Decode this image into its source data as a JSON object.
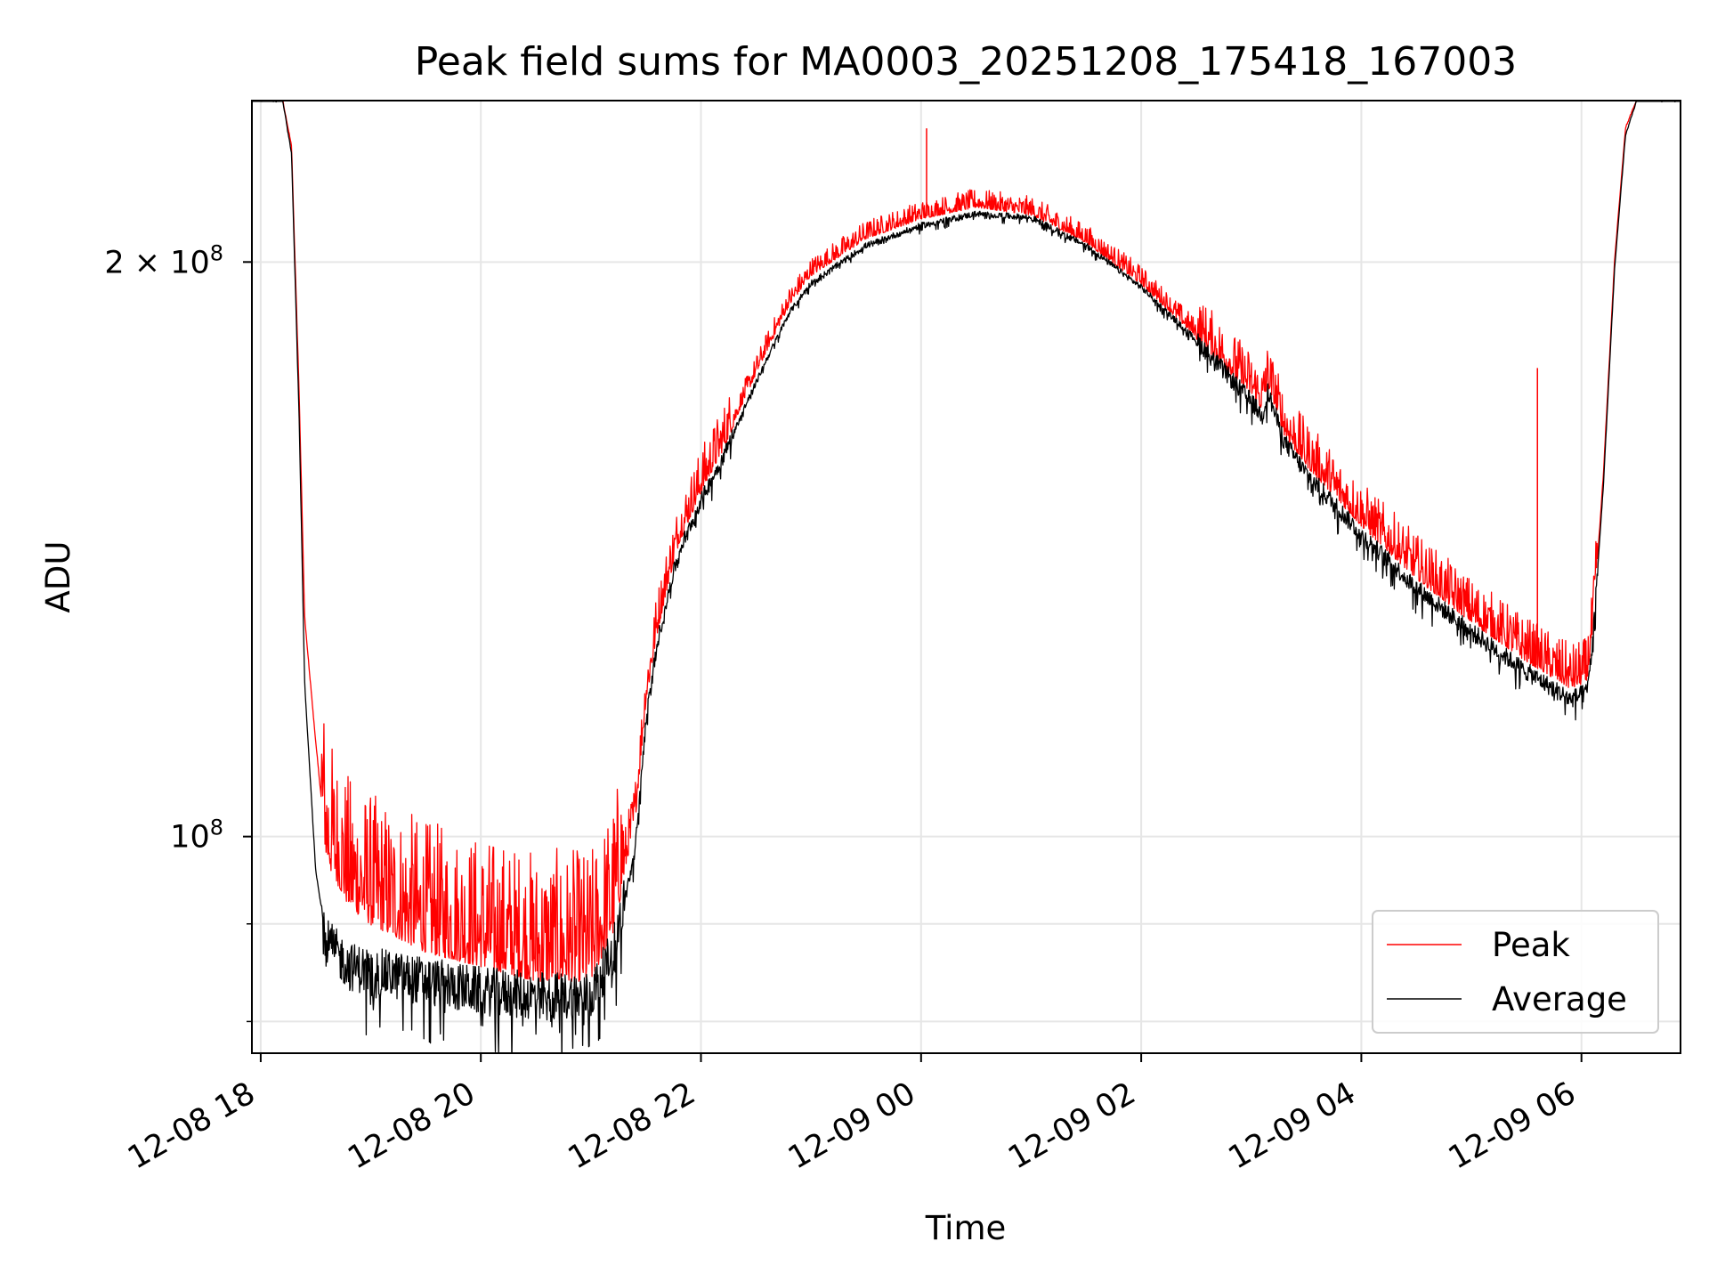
{
  "chart_data": {
    "type": "line",
    "title": "Peak field sums for MA0003_20251208_175418_167003",
    "xlabel": "Time",
    "ylabel": "ADU",
    "yscale": "log",
    "xlim_hours": [
      17.92,
      30.9
    ],
    "ylim": [
      77000000,
      243000000
    ],
    "grid": true,
    "x_ticks": [
      {
        "label": "12-08 18",
        "hours": 18
      },
      {
        "label": "12-08 20",
        "hours": 20
      },
      {
        "label": "12-08 22",
        "hours": 22
      },
      {
        "label": "12-09 00",
        "hours": 24
      },
      {
        "label": "12-09 02",
        "hours": 26
      },
      {
        "label": "12-09 04",
        "hours": 28
      },
      {
        "label": "12-09 06",
        "hours": 30
      }
    ],
    "y_major_ticks": [
      {
        "label_base": "10",
        "label_exp": "8",
        "value": 100000000
      },
      {
        "label_base": "2 × 10",
        "label_exp": "8",
        "value": 200000000
      }
    ],
    "y_minor_ticks": [
      80000000,
      90000000
    ],
    "legend": {
      "position": "lower-right",
      "entries": [
        "Peak",
        "Average"
      ]
    },
    "series": [
      {
        "name": "Peak",
        "color": "#ff0000",
        "hours": [
          17.92,
          18.2,
          18.28,
          18.35,
          18.4,
          18.5,
          18.6,
          18.8,
          19.0,
          19.5,
          20.0,
          20.5,
          21.0,
          21.2,
          21.4,
          21.5,
          21.6,
          21.7,
          21.8,
          22.0,
          22.2,
          22.4,
          22.6,
          22.8,
          23.0,
          23.5,
          24.0,
          24.5,
          25.0,
          25.5,
          26.0,
          26.5,
          27.0,
          27.1,
          27.15,
          27.3,
          27.5,
          28.0,
          28.5,
          29.0,
          29.5,
          29.9,
          30.05,
          30.1,
          30.2,
          30.3,
          30.4,
          30.5,
          30.9
        ],
        "values": [
          243000000,
          243000000,
          230000000,
          170000000,
          130000000,
          112000000,
          98000000,
          93000000,
          91000000,
          88000000,
          86500000,
          85000000,
          85000000,
          90000000,
          102000000,
          118000000,
          128000000,
          136000000,
          143000000,
          152000000,
          160000000,
          170000000,
          180000000,
          190000000,
          197000000,
          206000000,
          211000000,
          214000000,
          212000000,
          205000000,
          195000000,
          183000000,
          171000000,
          168000000,
          173000000,
          163000000,
          157000000,
          146000000,
          137000000,
          130000000,
          124000000,
          120000000,
          121000000,
          128000000,
          155000000,
          200000000,
          235000000,
          243000000,
          243000000
        ],
        "spikes": [
          {
            "hours": 24.05,
            "value": 235000000
          },
          {
            "hours": 29.6,
            "value": 176000000
          },
          {
            "hours": 27.13,
            "value": 176000000
          }
        ]
      },
      {
        "name": "Average",
        "color": "#000000",
        "hours": [
          17.92,
          18.2,
          18.28,
          18.35,
          18.4,
          18.5,
          18.6,
          18.8,
          19.0,
          19.5,
          20.0,
          20.5,
          21.0,
          21.2,
          21.4,
          21.5,
          21.6,
          21.7,
          21.8,
          22.0,
          22.2,
          22.4,
          22.6,
          22.8,
          23.0,
          23.5,
          24.0,
          24.5,
          25.0,
          25.5,
          26.0,
          26.5,
          27.0,
          27.1,
          27.15,
          27.3,
          27.5,
          28.0,
          28.5,
          29.0,
          29.5,
          29.9,
          30.05,
          30.1,
          30.2,
          30.3,
          30.4,
          30.5,
          30.9
        ],
        "values": [
          243000000,
          243000000,
          228000000,
          165000000,
          120000000,
          96000000,
          88000000,
          85500000,
          85000000,
          84000000,
          83000000,
          82500000,
          82500000,
          87000000,
          98000000,
          115000000,
          126000000,
          134000000,
          141000000,
          150000000,
          158000000,
          168000000,
          178000000,
          188000000,
          195000000,
          204000000,
          209000000,
          212000000,
          211000000,
          204000000,
          194000000,
          182000000,
          169000000,
          166000000,
          171000000,
          161000000,
          155000000,
          144000000,
          135000000,
          128000000,
          122000000,
          118000000,
          119000000,
          126000000,
          153000000,
          198000000,
          233000000,
          243000000,
          243000000
        ]
      }
    ]
  }
}
